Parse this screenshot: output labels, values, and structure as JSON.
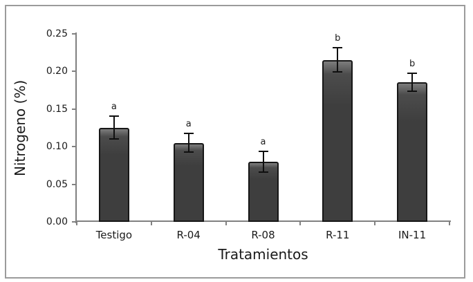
{
  "frame": {
    "border_color": "#9b9b9b",
    "background": "#ffffff"
  },
  "chart_data": {
    "type": "bar",
    "title": "",
    "xlabel": "Tratamientos",
    "ylabel": "Nitrogeno (%)",
    "categories": [
      "Testigo",
      "R-04",
      "R-08",
      "R-11",
      "IN-11"
    ],
    "values": [
      0.125,
      0.105,
      0.08,
      0.215,
      0.185
    ],
    "error_bars": [
      0.015,
      0.012,
      0.014,
      0.016,
      0.012
    ],
    "significance_letters": [
      "a",
      "a",
      "a",
      "b",
      "b"
    ],
    "yticks": [
      "0.00",
      "0.05",
      "0.10",
      "0.15",
      "0.20",
      "0.25"
    ],
    "ylim": [
      0,
      0.25
    ],
    "ytick_step": 0.05,
    "grid": false,
    "legend": false,
    "bar_color": "#3e3e3e",
    "bar_border_color": "#161616",
    "axis_color": "#808080",
    "text_color": "#1a1a1a"
  }
}
